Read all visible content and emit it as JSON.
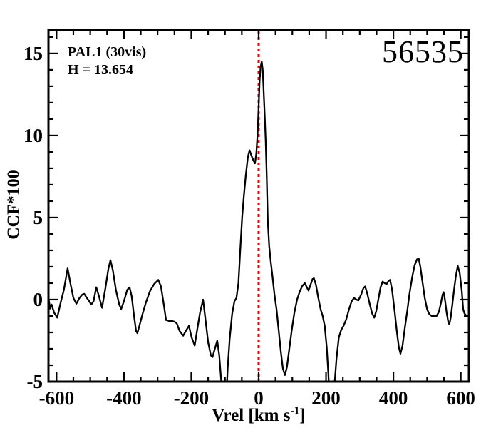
{
  "figure": {
    "background": "#ffffff",
    "frame_color": "#000000"
  },
  "annotations": {
    "target": "PAL1 (30vis)",
    "magnitude": "H = 13.654",
    "epoch": "56535"
  },
  "chart_data": {
    "type": "line",
    "title": "",
    "xlabel_main": "Vrel [km s",
    "xlabel_sup": "-1",
    "xlabel_close": "]",
    "ylabel": "CCF*100",
    "xlim": [
      -624,
      624
    ],
    "ylim": [
      -5,
      16.43
    ],
    "grid": false,
    "legend": false,
    "x_ticks": [
      {
        "v": -600,
        "label": "-600"
      },
      {
        "v": -400,
        "label": "-400"
      },
      {
        "v": -200,
        "label": "-200"
      },
      {
        "v": 0,
        "label": "0"
      },
      {
        "v": 200,
        "label": "200"
      },
      {
        "v": 400,
        "label": "400"
      },
      {
        "v": 600,
        "label": "600"
      }
    ],
    "y_ticks": [
      {
        "v": -5,
        "label": "-5"
      },
      {
        "v": 0,
        "label": "0"
      },
      {
        "v": 5,
        "label": "5"
      },
      {
        "v": 10,
        "label": "10"
      },
      {
        "v": 15,
        "label": "15"
      }
    ],
    "x_minor_step": 50,
    "y_minor_step": 1,
    "marker_line": {
      "x": 0,
      "color": "#ee0000",
      "style": "dotted"
    },
    "series": [
      {
        "name": "CCF",
        "color": "#000000",
        "points": [
          [
            -624,
            0.1
          ],
          [
            -619,
            -0.55
          ],
          [
            -615,
            -0.3
          ],
          [
            -607,
            -0.8
          ],
          [
            -598,
            -1.1
          ],
          [
            -588,
            -0.2
          ],
          [
            -578,
            0.6
          ],
          [
            -567,
            1.9
          ],
          [
            -558,
            0.9
          ],
          [
            -550,
            0.1
          ],
          [
            -541,
            -0.25
          ],
          [
            -532,
            0.1
          ],
          [
            -524,
            0.3
          ],
          [
            -518,
            0.35
          ],
          [
            -510,
            0.1
          ],
          [
            -503,
            -0.1
          ],
          [
            -497,
            -0.3
          ],
          [
            -490,
            -0.1
          ],
          [
            -482,
            0.75
          ],
          [
            -474,
            0.2
          ],
          [
            -465,
            -0.5
          ],
          [
            -455,
            0.7
          ],
          [
            -446,
            1.9
          ],
          [
            -440,
            2.4
          ],
          [
            -433,
            1.8
          ],
          [
            -424,
            0.6
          ],
          [
            -414,
            -0.3
          ],
          [
            -408,
            -0.57
          ],
          [
            -400,
            -0.1
          ],
          [
            -390,
            0.6
          ],
          [
            -383,
            0.74
          ],
          [
            -377,
            0.2
          ],
          [
            -370,
            -1.0
          ],
          [
            -364,
            -1.9
          ],
          [
            -360,
            -2.05
          ],
          [
            -354,
            -1.6
          ],
          [
            -345,
            -0.9
          ],
          [
            -335,
            -0.2
          ],
          [
            -323,
            0.5
          ],
          [
            -310,
            0.95
          ],
          [
            -298,
            1.2
          ],
          [
            -290,
            0.8
          ],
          [
            -281,
            -0.4
          ],
          [
            -275,
            -1.25
          ],
          [
            -266,
            -1.3
          ],
          [
            -258,
            -1.3
          ],
          [
            -250,
            -1.35
          ],
          [
            -243,
            -1.45
          ],
          [
            -235,
            -1.9
          ],
          [
            -224,
            -2.2
          ],
          [
            -216,
            -1.9
          ],
          [
            -207,
            -1.6
          ],
          [
            -199,
            -2.3
          ],
          [
            -190,
            -2.8
          ],
          [
            -183,
            -1.9
          ],
          [
            -174,
            -0.8
          ],
          [
            -165,
            0.0
          ],
          [
            -158,
            -1.2
          ],
          [
            -150,
            -2.6
          ],
          [
            -142,
            -3.4
          ],
          [
            -137,
            -3.5
          ],
          [
            -130,
            -3.0
          ],
          [
            -123,
            -2.5
          ],
          [
            -117,
            -3.4
          ],
          [
            -111,
            -5.0
          ],
          [
            -106,
            -6.5
          ],
          [
            -97,
            -6.5
          ],
          [
            -92,
            -4.2
          ],
          [
            -86,
            -2.4
          ],
          [
            -79,
            -0.9
          ],
          [
            -72,
            -0.1
          ],
          [
            -66,
            0.1
          ],
          [
            -60,
            1.0
          ],
          [
            -55,
            2.9
          ],
          [
            -49,
            5.0
          ],
          [
            -44,
            6.3
          ],
          [
            -38,
            7.6
          ],
          [
            -32,
            8.7
          ],
          [
            -27,
            9.1
          ],
          [
            -22,
            8.8
          ],
          [
            -16,
            8.5
          ],
          [
            -11,
            8.3
          ],
          [
            -7,
            8.9
          ],
          [
            -3,
            10.2
          ],
          [
            0,
            11.8
          ],
          [
            3,
            13.4
          ],
          [
            6,
            14.2
          ],
          [
            9,
            14.5
          ],
          [
            12,
            14.0
          ],
          [
            15,
            12.6
          ],
          [
            18,
            11.2
          ],
          [
            21,
            9.6
          ],
          [
            24,
            7.5
          ],
          [
            27,
            4.8
          ],
          [
            31,
            3.3
          ],
          [
            36,
            2.3
          ],
          [
            41,
            1.4
          ],
          [
            47,
            0.3
          ],
          [
            53,
            -0.6
          ],
          [
            59,
            -1.8
          ],
          [
            66,
            -3.2
          ],
          [
            72,
            -4.2
          ],
          [
            78,
            -4.6
          ],
          [
            84,
            -4.1
          ],
          [
            91,
            -3.0
          ],
          [
            98,
            -1.9
          ],
          [
            106,
            -0.8
          ],
          [
            114,
            0.0
          ],
          [
            122,
            0.5
          ],
          [
            130,
            0.85
          ],
          [
            137,
            1.0
          ],
          [
            143,
            0.75
          ],
          [
            148,
            0.55
          ],
          [
            154,
            0.9
          ],
          [
            160,
            1.25
          ],
          [
            164,
            1.3
          ],
          [
            170,
            0.9
          ],
          [
            177,
            0.1
          ],
          [
            184,
            -0.6
          ],
          [
            190,
            -1.0
          ],
          [
            196,
            -1.6
          ],
          [
            202,
            -2.9
          ],
          [
            207,
            -4.6
          ],
          [
            211,
            -6.5
          ],
          [
            221,
            -6.5
          ],
          [
            226,
            -5.0
          ],
          [
            231,
            -3.6
          ],
          [
            238,
            -2.3
          ],
          [
            245,
            -1.85
          ],
          [
            252,
            -1.6
          ],
          [
            260,
            -1.2
          ],
          [
            268,
            -0.6
          ],
          [
            276,
            -0.1
          ],
          [
            283,
            0.1
          ],
          [
            290,
            0.0
          ],
          [
            296,
            -0.05
          ],
          [
            304,
            0.3
          ],
          [
            311,
            0.7
          ],
          [
            316,
            0.8
          ],
          [
            322,
            0.4
          ],
          [
            330,
            -0.3
          ],
          [
            337,
            -0.85
          ],
          [
            343,
            -1.1
          ],
          [
            349,
            -0.7
          ],
          [
            356,
            0.1
          ],
          [
            362,
            0.75
          ],
          [
            368,
            1.1
          ],
          [
            374,
            1.0
          ],
          [
            380,
            0.95
          ],
          [
            386,
            1.15
          ],
          [
            390,
            1.2
          ],
          [
            396,
            0.6
          ],
          [
            403,
            -0.6
          ],
          [
            410,
            -1.9
          ],
          [
            416,
            -2.9
          ],
          [
            421,
            -3.3
          ],
          [
            427,
            -2.8
          ],
          [
            434,
            -1.7
          ],
          [
            441,
            -0.7
          ],
          [
            448,
            0.4
          ],
          [
            456,
            1.4
          ],
          [
            463,
            2.1
          ],
          [
            470,
            2.45
          ],
          [
            475,
            2.5
          ],
          [
            480,
            2.0
          ],
          [
            486,
            1.1
          ],
          [
            493,
            0.1
          ],
          [
            500,
            -0.6
          ],
          [
            507,
            -0.9
          ],
          [
            514,
            -1.0
          ],
          [
            521,
            -1.0
          ],
          [
            528,
            -1.0
          ],
          [
            535,
            -0.75
          ],
          [
            541,
            -0.2
          ],
          [
            546,
            0.3
          ],
          [
            549,
            0.45
          ],
          [
            553,
            0.0
          ],
          [
            558,
            -0.8
          ],
          [
            563,
            -1.4
          ],
          [
            566,
            -1.5
          ],
          [
            570,
            -1.1
          ],
          [
            575,
            -0.3
          ],
          [
            580,
            0.6
          ],
          [
            585,
            1.4
          ],
          [
            591,
            2.05
          ],
          [
            597,
            1.6
          ],
          [
            603,
            0.5
          ],
          [
            607,
            -0.6
          ],
          [
            611,
            -0.85
          ],
          [
            617,
            -1.0
          ],
          [
            624,
            -1.05
          ]
        ]
      }
    ]
  }
}
